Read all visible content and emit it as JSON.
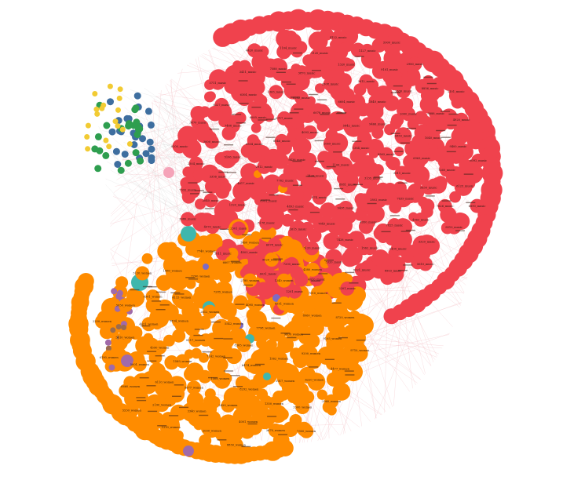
{
  "graph": {
    "colors": {
      "red": "#f0424d",
      "orange": "#ff8c00",
      "blue": "#3e6e9f",
      "green": "#2e9e4f",
      "yellow": "#f2cb33",
      "teal": "#3fb7ad",
      "purple": "#a06aa9",
      "pink": "#f5a3b8",
      "brown": "#9a6b4f",
      "violet": "#7e6ac4",
      "edge": "#f3b7bd"
    },
    "nodes": [
      {
        "label": "1106_music",
        "group": "red",
        "r": 11
      },
      {
        "label": "1426_music",
        "group": "red",
        "r": 11
      },
      {
        "label": "2069_music",
        "group": "red",
        "r": 11
      },
      {
        "label": "8881_music",
        "group": "red",
        "r": 11
      },
      {
        "label": "9436_music",
        "group": "red",
        "r": 11
      },
      {
        "label": "1384_music",
        "group": "red",
        "r": 11
      },
      {
        "label": "874_music",
        "group": "red",
        "r": 9
      },
      {
        "label": "4093_music",
        "group": "red",
        "r": 9
      },
      {
        "label": "3135_music",
        "group": "red",
        "r": 9
      },
      {
        "label": "7762_music",
        "group": "red",
        "r": 9
      },
      {
        "label": "5842_music",
        "group": "red",
        "r": 11
      },
      {
        "label": "9438_music",
        "group": "red",
        "r": 9
      },
      {
        "label": "8046_music",
        "group": "red",
        "r": 9
      },
      {
        "label": "8563_music",
        "group": "red",
        "r": 9
      },
      {
        "label": "4893_music",
        "group": "red",
        "r": 9
      },
      {
        "label": "6078_music",
        "group": "red",
        "r": 11
      },
      {
        "label": "2802_music",
        "group": "red",
        "r": 11
      },
      {
        "label": "2912_music",
        "group": "red",
        "r": 9
      },
      {
        "label": "9466_music",
        "group": "red",
        "r": 9
      },
      {
        "label": "7843_music",
        "group": "red",
        "r": 9
      },
      {
        "label": "6717_music",
        "group": "red",
        "r": 9
      },
      {
        "label": "3611_music",
        "group": "red",
        "r": 9
      },
      {
        "label": "8991_music",
        "group": "red",
        "r": 11
      },
      {
        "label": "6604_music",
        "group": "red",
        "r": 9
      },
      {
        "label": "4950_music",
        "group": "red",
        "r": 9
      },
      {
        "label": "6504_music",
        "group": "red",
        "r": 9
      },
      {
        "label": "6859_music",
        "group": "red",
        "r": 11
      },
      {
        "label": "2615_music",
        "group": "red",
        "r": 11
      },
      {
        "label": "8282_music",
        "group": "red",
        "r": 9
      },
      {
        "label": "7639_music",
        "group": "red",
        "r": 9
      },
      {
        "label": "4617_music",
        "group": "red",
        "r": 9
      },
      {
        "label": "1840_music",
        "group": "red",
        "r": 11
      },
      {
        "label": "7428_music",
        "group": "red",
        "r": 9
      },
      {
        "label": "6009_music",
        "group": "red",
        "r": 9
      },
      {
        "label": "6963_music",
        "group": "red",
        "r": 9
      },
      {
        "label": "8178_music",
        "group": "red",
        "r": 9
      },
      {
        "label": "2308_music",
        "group": "red",
        "r": 9
      },
      {
        "label": "7825_music",
        "group": "red",
        "r": 9
      },
      {
        "label": "5106_music",
        "group": "red",
        "r": 9
      },
      {
        "label": "2000_music",
        "group": "red",
        "r": 9
      },
      {
        "label": "3120_music",
        "group": "red",
        "r": 9
      },
      {
        "label": "1363_music",
        "group": "red",
        "r": 9
      },
      {
        "label": "5630_music",
        "group": "red",
        "r": 9
      },
      {
        "label": "1320_music",
        "group": "red",
        "r": 9
      },
      {
        "label": "2612_music",
        "group": "red",
        "r": 9
      },
      {
        "label": "1562_music",
        "group": "red",
        "r": 9
      },
      {
        "label": "7488_music",
        "group": "red",
        "r": 9
      },
      {
        "label": "1040_music",
        "group": "red",
        "r": 9
      },
      {
        "label": "6078_music",
        "group": "red",
        "r": 9
      },
      {
        "label": "3870_music",
        "group": "red",
        "r": 9
      },
      {
        "label": "4963_music",
        "group": "red",
        "r": 9
      },
      {
        "label": "3356_music",
        "group": "red",
        "r": 9
      },
      {
        "label": "2630_music",
        "group": "red",
        "r": 9
      },
      {
        "label": "5320_music",
        "group": "red",
        "r": 9
      },
      {
        "label": "6304_music",
        "group": "red",
        "r": 9
      },
      {
        "label": "7260_music",
        "group": "red",
        "r": 9
      },
      {
        "label": "2301_music",
        "group": "red",
        "r": 9
      },
      {
        "label": "1320_music",
        "group": "red",
        "r": 9
      },
      {
        "label": "6435_music",
        "group": "red",
        "r": 9
      },
      {
        "label": "3000_music",
        "group": "red",
        "r": 9
      },
      {
        "label": "8888_music",
        "group": "red",
        "r": 9
      },
      {
        "label": "7200_music",
        "group": "red",
        "r": 9
      },
      {
        "label": "7588_music",
        "group": "red",
        "r": 9
      },
      {
        "label": "7626_music",
        "group": "red",
        "r": 9
      },
      {
        "label": "2040_music",
        "group": "red",
        "r": 9
      },
      {
        "label": "9101_music",
        "group": "red",
        "r": 9
      },
      {
        "label": "5021_music",
        "group": "red",
        "r": 9
      },
      {
        "label": "8327_music",
        "group": "red",
        "r": 9
      },
      {
        "label": "9400_music",
        "group": "red",
        "r": 9
      },
      {
        "label": "4503_music",
        "group": "red",
        "r": 9
      },
      {
        "label": "1120_music",
        "group": "red",
        "r": 9
      },
      {
        "label": "3320_music",
        "group": "red",
        "r": 9
      },
      {
        "label": "2504_music",
        "group": "red",
        "r": 9
      },
      {
        "label": "8856_music",
        "group": "red",
        "r": 9
      },
      {
        "label": "4010_music",
        "group": "red",
        "r": 9
      },
      {
        "label": "3411_music",
        "group": "red",
        "r": 9
      },
      {
        "label": "6123_music",
        "group": "red",
        "r": 9
      },
      {
        "label": "4070_music",
        "group": "red",
        "r": 9
      },
      {
        "label": "1127_music",
        "group": "red",
        "r": 9
      },
      {
        "label": "8903_music",
        "group": "red",
        "r": 9
      },
      {
        "label": "3470_music",
        "group": "red",
        "r": 9
      },
      {
        "label": "4920_music",
        "group": "red",
        "r": 9
      },
      {
        "label": "6031_music",
        "group": "red",
        "r": 9
      },
      {
        "label": "1104_music",
        "group": "red",
        "r": 9
      },
      {
        "label": "8510_music",
        "group": "red",
        "r": 9
      },
      {
        "label": "7332_music",
        "group": "red",
        "r": 9
      },
      {
        "label": "2980_music",
        "group": "red",
        "r": 9
      },
      {
        "label": "2201_music",
        "group": "red",
        "r": 9
      },
      {
        "label": "5711_music",
        "group": "red",
        "r": 9
      },
      {
        "label": "6092_music",
        "group": "red",
        "r": 9
      },
      {
        "label": "1011_music",
        "group": "red",
        "r": 9
      },
      {
        "label": "4122_music",
        "group": "red",
        "r": 9
      },
      {
        "label": "5610_music",
        "group": "red",
        "r": 9
      },
      {
        "label": "9200_music",
        "group": "red",
        "r": 9
      },
      {
        "label": "1101_music",
        "group": "red",
        "r": 9
      },
      {
        "label": "1201_music",
        "group": "red",
        "r": 9
      },
      {
        "label": "4420_music",
        "group": "red",
        "r": 9
      },
      {
        "label": "6890_music",
        "group": "red",
        "r": 9
      },
      {
        "label": "3080_music",
        "group": "red",
        "r": 9
      },
      {
        "label": "5900_music",
        "group": "red",
        "r": 9
      },
      {
        "label": "8305_women",
        "group": "orange",
        "r": 9
      },
      {
        "label": "7142_women",
        "group": "orange",
        "r": 9
      },
      {
        "label": "5542_women",
        "group": "orange",
        "r": 9
      },
      {
        "label": "6474_women",
        "group": "orange",
        "r": 9
      },
      {
        "label": "8117_women",
        "group": "orange",
        "r": 9
      },
      {
        "label": "7798_women",
        "group": "orange",
        "r": 9
      },
      {
        "label": "1508_women",
        "group": "orange",
        "r": 9
      },
      {
        "label": "2612_women",
        "group": "orange",
        "r": 9
      },
      {
        "label": "1562_women",
        "group": "orange",
        "r": 11
      },
      {
        "label": "1589_women",
        "group": "orange",
        "r": 9
      },
      {
        "label": "4095_women",
        "group": "orange",
        "r": 9
      },
      {
        "label": "8292_women",
        "group": "orange",
        "r": 9
      },
      {
        "label": "5834_women",
        "group": "orange",
        "r": 9
      },
      {
        "label": "9809_women",
        "group": "orange",
        "r": 9
      },
      {
        "label": "5677_women",
        "group": "orange",
        "r": 9
      },
      {
        "label": "7285_women",
        "group": "orange",
        "r": 9
      },
      {
        "label": "3017_women",
        "group": "orange",
        "r": 9
      },
      {
        "label": "4590_women",
        "group": "orange",
        "r": 9
      },
      {
        "label": "8551_women",
        "group": "orange",
        "r": 9
      },
      {
        "label": "2420_women",
        "group": "orange",
        "r": 9
      },
      {
        "label": "4115_women",
        "group": "orange",
        "r": 9
      },
      {
        "label": "9200_women",
        "group": "orange",
        "r": 9
      },
      {
        "label": "6110_women",
        "group": "orange",
        "r": 9
      },
      {
        "label": "2780_women",
        "group": "orange",
        "r": 9
      },
      {
        "label": "1350_women",
        "group": "orange",
        "r": 9
      },
      {
        "label": "4421_women",
        "group": "orange",
        "r": 9
      },
      {
        "label": "8060_women",
        "group": "orange",
        "r": 9
      },
      {
        "label": "3340_women",
        "group": "orange",
        "r": 9
      },
      {
        "label": "7700_women",
        "group": "orange",
        "r": 9
      },
      {
        "label": "6220_women",
        "group": "orange",
        "r": 9
      },
      {
        "label": "5001_women",
        "group": "orange",
        "r": 9
      },
      {
        "label": "1240_women",
        "group": "orange",
        "r": 9
      },
      {
        "label": "4001_women",
        "group": "orange",
        "r": 9
      },
      {
        "label": "8301_women",
        "group": "orange",
        "r": 9
      },
      {
        "label": "9105_women",
        "group": "orange",
        "r": 9
      },
      {
        "label": "2190_women",
        "group": "orange",
        "r": 9
      },
      {
        "label": "6607_women",
        "group": "orange",
        "r": 9
      },
      {
        "label": "3300_women",
        "group": "orange",
        "r": 9
      },
      {
        "label": "5410_women",
        "group": "orange",
        "r": 9
      },
      {
        "label": "7010_women",
        "group": "orange",
        "r": 9
      },
      {
        "label": "2030_women",
        "group": "orange",
        "r": 9
      },
      {
        "label": "1880_women",
        "group": "orange",
        "r": 9
      },
      {
        "label": "4477_women",
        "group": "orange",
        "r": 9
      },
      {
        "label": "6660_women",
        "group": "orange",
        "r": 9
      },
      {
        "label": "9020_women",
        "group": "orange",
        "r": 9
      },
      {
        "label": "3670_women",
        "group": "orange",
        "r": 9
      },
      {
        "label": "5050_women",
        "group": "orange",
        "r": 9
      },
      {
        "label": "8720_women",
        "group": "orange",
        "r": 9
      },
      {
        "label": "1210_women",
        "group": "orange",
        "r": 9
      },
      {
        "label": "7740_women",
        "group": "orange",
        "r": 9
      },
      {
        "label": "2960_women",
        "group": "orange",
        "r": 9
      },
      {
        "label": "6190_women",
        "group": "orange",
        "r": 9
      },
      {
        "label": "4380_women",
        "group": "orange",
        "r": 9
      },
      {
        "label": "8850_women",
        "group": "orange",
        "r": 9
      },
      {
        "label": "3120_women",
        "group": "orange",
        "r": 9
      },
      {
        "label": "9710_women",
        "group": "orange",
        "r": 9
      },
      {
        "label": "5530_women",
        "group": "orange",
        "r": 9
      },
      {
        "label": "1460_women",
        "group": "orange",
        "r": 9
      },
      {
        "label": "7300_women",
        "group": "orange",
        "r": 9
      },
      {
        "label": "2250_women",
        "group": "orange",
        "r": 9
      }
    ]
  }
}
